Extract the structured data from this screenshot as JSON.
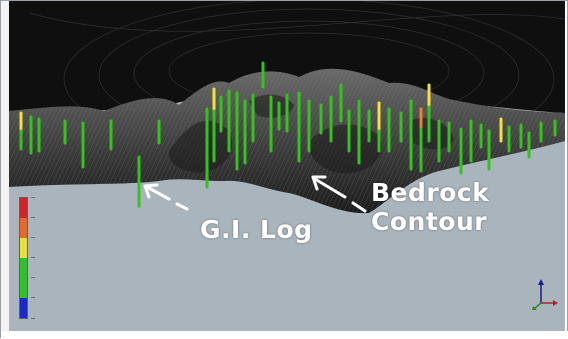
{
  "annotations": {
    "gi_log": "G.I. Log",
    "bedrock_line1": "Bedrock",
    "bedrock_line2": "Contour"
  },
  "colors": {
    "background": "#a9b4bd",
    "sky": "#0f0f0f",
    "log_green": "#35c21c",
    "log_yellow": "#f2e23a",
    "log_orange": "#e8832a",
    "log_red": "#d62a24",
    "log_blue": "#1b2cc9"
  },
  "legend": {
    "stops": [
      "#d3232a",
      "#e36a2b",
      "#e9df3a",
      "#2fbf2f",
      "#2fbf2f",
      "#1a29c8"
    ]
  },
  "axis_gizmo": {
    "icons": [
      "x-axis-arrow-icon",
      "y-axis-arrow-icon",
      "z-axis-arrow-icon"
    ]
  }
}
